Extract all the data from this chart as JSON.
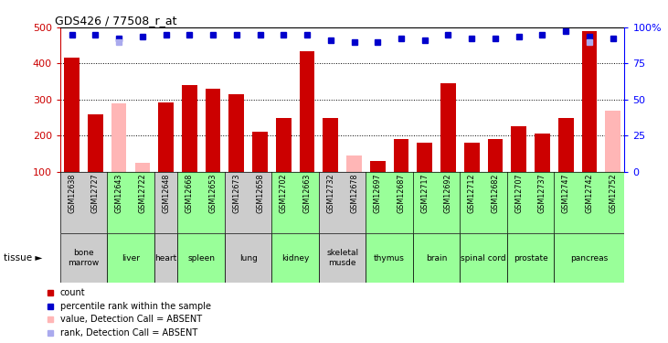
{
  "title": "GDS426 / 77508_r_at",
  "samples": [
    "GSM12638",
    "GSM12727",
    "GSM12643",
    "GSM12722",
    "GSM12648",
    "GSM12668",
    "GSM12653",
    "GSM12673",
    "GSM12658",
    "GSM12702",
    "GSM12663",
    "GSM12732",
    "GSM12678",
    "GSM12697",
    "GSM12687",
    "GSM12717",
    "GSM12692",
    "GSM12712",
    "GSM12682",
    "GSM12707",
    "GSM12737",
    "GSM12747",
    "GSM12742",
    "GSM12752"
  ],
  "tissues": [
    {
      "label": "bone\nmarrow",
      "start": 0,
      "end": 2,
      "color": "#cccccc"
    },
    {
      "label": "liver",
      "start": 2,
      "end": 4,
      "color": "#99ff99"
    },
    {
      "label": "heart",
      "start": 4,
      "end": 5,
      "color": "#cccccc"
    },
    {
      "label": "spleen",
      "start": 5,
      "end": 7,
      "color": "#99ff99"
    },
    {
      "label": "lung",
      "start": 7,
      "end": 9,
      "color": "#cccccc"
    },
    {
      "label": "kidney",
      "start": 9,
      "end": 11,
      "color": "#99ff99"
    },
    {
      "label": "skeletal\nmusde",
      "start": 11,
      "end": 13,
      "color": "#cccccc"
    },
    {
      "label": "thymus",
      "start": 13,
      "end": 15,
      "color": "#99ff99"
    },
    {
      "label": "brain",
      "start": 15,
      "end": 17,
      "color": "#99ff99"
    },
    {
      "label": "spinal cord",
      "start": 17,
      "end": 19,
      "color": "#99ff99"
    },
    {
      "label": "prostate",
      "start": 19,
      "end": 21,
      "color": "#99ff99"
    },
    {
      "label": "pancreas",
      "start": 21,
      "end": 24,
      "color": "#99ff99"
    }
  ],
  "count_values": [
    415,
    258,
    null,
    null,
    292,
    340,
    330,
    315,
    210,
    248,
    435,
    248,
    null,
    130,
    190,
    180,
    345,
    180,
    190,
    225,
    205,
    248,
    490,
    null
  ],
  "absent_value": [
    null,
    null,
    290,
    125,
    null,
    null,
    null,
    null,
    null,
    null,
    null,
    null,
    145,
    null,
    null,
    null,
    null,
    null,
    null,
    null,
    null,
    null,
    null,
    270
  ],
  "rank_values": [
    480,
    480,
    470,
    475,
    480,
    480,
    480,
    480,
    480,
    480,
    480,
    465,
    460,
    460,
    470,
    465,
    480,
    470,
    470,
    475,
    480,
    490,
    475,
    470
  ],
  "absent_rank": [
    null,
    null,
    460,
    null,
    null,
    null,
    null,
    null,
    null,
    null,
    null,
    null,
    null,
    null,
    null,
    null,
    null,
    null,
    null,
    null,
    null,
    null,
    460,
    null
  ],
  "ylim_left": [
    100,
    500
  ],
  "ylim_right": [
    0,
    100
  ],
  "yticks_left": [
    100,
    200,
    300,
    400,
    500
  ],
  "yticks_right": [
    0,
    25,
    50,
    75,
    100
  ],
  "bar_color": "#cc0000",
  "absent_bar_color": "#ffb6b6",
  "rank_color": "#0000cc",
  "absent_rank_color": "#aaaaee",
  "bg_color": "#ffffff",
  "legend_items": [
    {
      "label": "count",
      "color": "#cc0000",
      "marker": "s"
    },
    {
      "label": "percentile rank within the sample",
      "color": "#0000cc",
      "marker": "s"
    },
    {
      "label": "value, Detection Call = ABSENT",
      "color": "#ffb6b6",
      "marker": "s"
    },
    {
      "label": "rank, Detection Call = ABSENT",
      "color": "#aaaaee",
      "marker": "s"
    }
  ]
}
